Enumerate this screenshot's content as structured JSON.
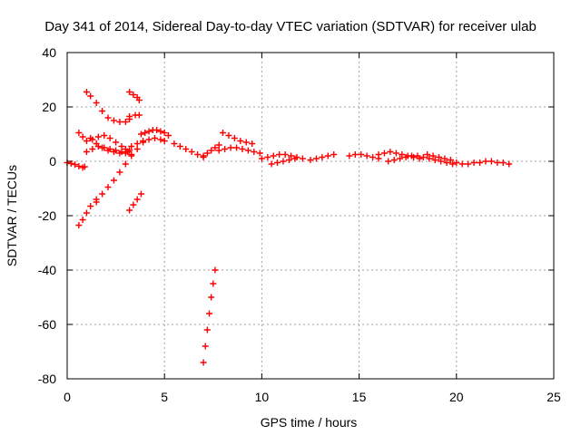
{
  "chart_data": {
    "type": "scatter",
    "title": "Day 341 of 2014, Sidereal Day-to-day VTEC variation (SDTVAR) for receiver ulab",
    "xlabel": "GPS time / hours",
    "ylabel": "SDTVAR / TECUs",
    "xlim": [
      0,
      25
    ],
    "ylim": [
      -80,
      40
    ],
    "xticks": [
      0,
      5,
      10,
      15,
      20,
      25
    ],
    "yticks": [
      -80,
      -60,
      -40,
      -20,
      0,
      20,
      40
    ],
    "xtick_labels": [
      "0",
      "5",
      "10",
      "15",
      "20",
      "25"
    ],
    "ytick_labels": [
      "-80",
      "-60",
      "-40",
      "-20",
      "0",
      "20",
      "40"
    ],
    "grid": true,
    "marker": "plus",
    "color": "#ff0000",
    "series": [
      {
        "name": "s01",
        "x": [
          0.0,
          0.2,
          0.4,
          0.6,
          0.8,
          0.9
        ],
        "y": [
          -0.5,
          -0.8,
          -1.2,
          -1.8,
          -2.3,
          -2.0
        ]
      },
      {
        "name": "s02",
        "x": [
          0.6,
          0.8,
          1.0,
          1.2,
          1.5
        ],
        "y": [
          -23.5,
          -21.5,
          -19.0,
          -16.5,
          -15.0
        ]
      },
      {
        "name": "s03",
        "x": [
          1.5,
          1.8,
          2.1,
          2.4,
          2.7,
          3.0,
          3.3,
          3.6,
          3.9
        ],
        "y": [
          -14.0,
          -12.0,
          -9.5,
          -7.0,
          -4.0,
          -1.0,
          2.0,
          4.5,
          7.0
        ]
      },
      {
        "name": "s04",
        "x": [
          1.0,
          1.2,
          1.5,
          1.8,
          2.1,
          2.4,
          2.7,
          3.0,
          3.2
        ],
        "y": [
          25.5,
          24.0,
          21.5,
          18.5,
          16.0,
          15.0,
          14.5,
          14.5,
          15.5
        ]
      },
      {
        "name": "s05",
        "x": [
          3.2,
          3.5,
          3.7
        ],
        "y": [
          16.5,
          17.0,
          17.0
        ]
      },
      {
        "name": "s06",
        "x": [
          3.2,
          3.4,
          3.6,
          3.7
        ],
        "y": [
          25.5,
          24.5,
          23.5,
          22.5
        ]
      },
      {
        "name": "s07",
        "x": [
          1.2,
          1.5,
          1.8,
          2.1,
          2.4,
          2.7,
          3.0,
          3.3
        ],
        "y": [
          8.5,
          6.5,
          5.0,
          4.0,
          3.5,
          3.0,
          3.0,
          2.5
        ]
      },
      {
        "name": "s08",
        "x": [
          1.0,
          1.3,
          1.6,
          1.9,
          2.2,
          2.5,
          2.8,
          3.1
        ],
        "y": [
          3.5,
          4.5,
          5.5,
          5.0,
          4.5,
          4.0,
          3.5,
          3.5
        ]
      },
      {
        "name": "s09",
        "x": [
          0.6,
          0.8,
          1.0,
          1.3,
          1.6,
          1.9,
          2.2,
          2.5,
          2.8,
          3.0,
          3.2
        ],
        "y": [
          10.5,
          9.0,
          7.5,
          8.0,
          9.0,
          9.5,
          8.5,
          7.0,
          5.5,
          4.5,
          4.0
        ]
      },
      {
        "name": "s10",
        "x": [
          3.2,
          3.4,
          3.6,
          3.8
        ],
        "y": [
          -18.0,
          -16.0,
          -14.0,
          -12.0
        ]
      },
      {
        "name": "s11",
        "x": [
          3.3,
          3.6,
          3.9,
          4.2,
          4.5,
          4.8,
          5.0
        ],
        "y": [
          5.5,
          6.5,
          7.5,
          8.0,
          8.5,
          8.0,
          7.5
        ]
      },
      {
        "name": "s12",
        "x": [
          3.8,
          4.0,
          4.2,
          4.4,
          4.6,
          4.8,
          5.0,
          5.2
        ],
        "y": [
          10.0,
          10.5,
          11.0,
          11.5,
          11.5,
          11.0,
          10.5,
          9.5
        ]
      },
      {
        "name": "s13",
        "x": [
          5.5,
          5.8,
          6.1,
          6.4,
          6.7,
          7.0
        ],
        "y": [
          6.5,
          5.5,
          4.5,
          3.5,
          2.5,
          1.5
        ]
      },
      {
        "name": "s14",
        "x": [
          7.0,
          7.2,
          7.4,
          7.6,
          7.8
        ],
        "y": [
          2.0,
          3.0,
          4.0,
          5.0,
          6.0
        ]
      },
      {
        "name": "s15",
        "x": [
          7.0,
          7.1,
          7.2,
          7.3,
          7.4,
          7.5,
          7.6
        ],
        "y": [
          -74.0,
          -68.0,
          -62.0,
          -56.0,
          -50.0,
          -45.0,
          -40.0
        ]
      },
      {
        "name": "s16",
        "x": [
          8.0,
          8.3,
          8.6,
          8.9,
          9.2,
          9.5
        ],
        "y": [
          10.5,
          9.5,
          8.5,
          7.5,
          7.0,
          6.5
        ]
      },
      {
        "name": "s17",
        "x": [
          7.8,
          8.1,
          8.4,
          8.7,
          9.0,
          9.3,
          9.6,
          9.9
        ],
        "y": [
          4.0,
          4.5,
          5.0,
          5.0,
          4.5,
          4.0,
          3.5,
          3.0
        ]
      },
      {
        "name": "s18",
        "x": [
          10.0,
          10.3,
          10.6,
          10.9,
          11.2,
          11.5,
          11.8,
          12.1
        ],
        "y": [
          1.0,
          1.5,
          2.0,
          2.5,
          2.5,
          2.0,
          1.5,
          1.0
        ]
      },
      {
        "name": "s19",
        "x": [
          10.5,
          10.8,
          11.1,
          11.4,
          11.7
        ],
        "y": [
          -1.0,
          -0.5,
          0.0,
          0.5,
          1.0
        ]
      },
      {
        "name": "s20",
        "x": [
          12.5,
          12.8,
          13.1,
          13.4,
          13.7
        ],
        "y": [
          0.5,
          1.0,
          1.5,
          2.0,
          2.5
        ]
      },
      {
        "name": "s21",
        "x": [
          14.5,
          14.8,
          15.1,
          15.4,
          15.7,
          16.0
        ],
        "y": [
          2.0,
          2.5,
          2.5,
          2.0,
          1.5,
          1.0
        ]
      },
      {
        "name": "s22",
        "x": [
          16.0,
          16.3,
          16.6,
          16.9,
          17.2,
          17.5,
          17.8,
          18.1
        ],
        "y": [
          2.5,
          3.0,
          3.5,
          3.0,
          2.5,
          2.0,
          1.5,
          1.0
        ]
      },
      {
        "name": "s23",
        "x": [
          16.5,
          16.8,
          17.1,
          17.4,
          17.7,
          18.0,
          18.3,
          18.6,
          18.9,
          19.2,
          19.5,
          19.8
        ],
        "y": [
          0.0,
          0.5,
          1.0,
          1.5,
          2.0,
          2.0,
          1.5,
          1.0,
          0.5,
          0.0,
          -0.5,
          -1.0
        ]
      },
      {
        "name": "s24",
        "x": [
          18.5,
          18.8,
          19.1,
          19.4,
          19.7
        ],
        "y": [
          2.5,
          2.0,
          1.5,
          1.0,
          0.5
        ]
      },
      {
        "name": "s25",
        "x": [
          20.0,
          20.3,
          20.6,
          20.9,
          21.2,
          21.5,
          21.8,
          22.1,
          22.4,
          22.7
        ],
        "y": [
          -0.5,
          -1.0,
          -1.0,
          -0.5,
          -0.5,
          0.0,
          0.0,
          -0.5,
          -0.5,
          -1.0
        ]
      }
    ]
  }
}
